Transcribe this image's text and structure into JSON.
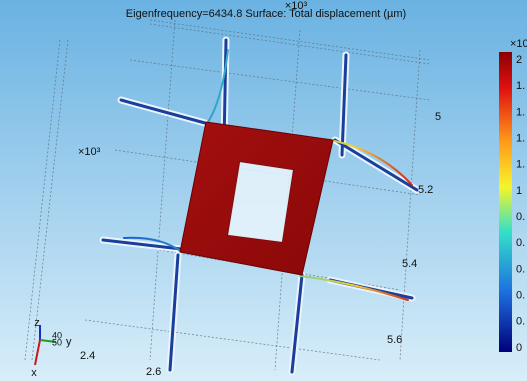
{
  "title": "Eigenfrequency=6434.8   Surface: Total displacement (µm)",
  "plot": {
    "top_exponent": "×10³",
    "left_exponent": "×10³",
    "right_axis_labels": [
      "5",
      "5.2",
      "5.4",
      "5.6"
    ],
    "bottom_axis_labels": [
      "2.4",
      "2.6"
    ],
    "triad": {
      "z": "z",
      "y": "y",
      "x": "x",
      "overlap_top": "40",
      "overlap_bottom": "50"
    }
  },
  "colorbar": {
    "exponent": "×10",
    "labels": [
      "2",
      "1.",
      "1.",
      "1.",
      "1.",
      "1",
      "0.",
      "0.",
      "0.",
      "0.",
      "0.",
      "0"
    ]
  }
}
